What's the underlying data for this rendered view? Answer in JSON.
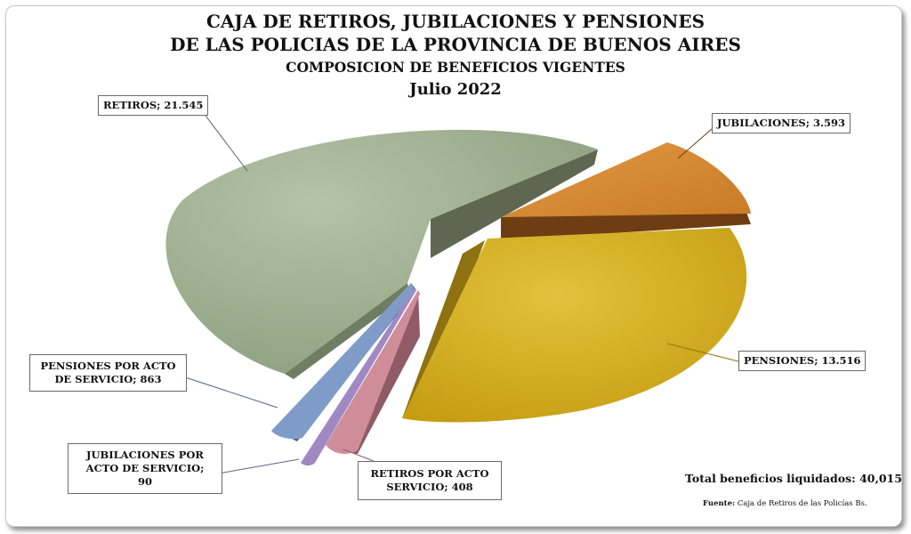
{
  "header": {
    "title_line1": "CAJA DE RETIROS, JUBILACIONES Y PENSIONES",
    "title_line2": "DE LAS POLICIAS DE LA PROVINCIA DE BUENOS AIRES",
    "subtitle": "COMPOSICION  DE BENEFICIOS VIGENTES",
    "period": "Julio 2022"
  },
  "chart_data": {
    "type": "pie",
    "title": "CAJA DE RETIROS, JUBILACIONES Y PENSIONES DE LAS POLICIAS DE LA PROVINCIA DE BUENOS AIRES",
    "subtitle": "COMPOSICION  DE BENEFICIOS VIGENTES",
    "period": "Julio 2022",
    "slices": [
      {
        "label": "RETIROS; 21.545",
        "category": "RETIROS",
        "value": 21545,
        "color": "#98a98a"
      },
      {
        "label": "JUBILACIONES; 3.593",
        "category": "JUBILACIONES",
        "value": 3593,
        "color": "#d68a33"
      },
      {
        "label": "PENSIONES; 13.516",
        "category": "PENSIONES",
        "value": 13516,
        "color": "#d4ad22"
      },
      {
        "label": "RETIROS POR ACTO SERVICIO; 408",
        "category": "RETIROS POR ACTO SERVICIO",
        "value": 408,
        "color": "#cf8d9a"
      },
      {
        "label": "JUBILACIONES POR ACTO DE SERVICIO; 90",
        "category": "JUBILACIONES POR ACTO DE SERVICIO",
        "value": 90,
        "color": "#a089c3"
      },
      {
        "label": "PENSIONES POR ACTO DE SERVICIO;  863",
        "category": "PENSIONES POR ACTO DE SERVICIO",
        "value": 863,
        "color": "#7f9cc8"
      }
    ],
    "exploded": true,
    "style": "3d"
  },
  "labels": {
    "retiros": "RETIROS; 21.545",
    "jubilaciones": "JUBILACIONES; 3.593",
    "pensiones": "PENSIONES; 13.516",
    "pensiones_acto_l1": "PENSIONES POR ACTO",
    "pensiones_acto_l2": "DE SERVICIO;  863",
    "jub_acto_l1": "JUBILACIONES POR",
    "jub_acto_l2": "ACTO DE SERVICIO;",
    "jub_acto_l3": "90",
    "retiros_acto_l1": "RETIROS POR ACTO",
    "retiros_acto_l2": "SERVICIO; 408"
  },
  "footer": {
    "total": "Total beneficios liquidados: 40,015",
    "source_label": "Fuente:",
    "source_text": "Caja de Retiros de las Policías Bs."
  }
}
